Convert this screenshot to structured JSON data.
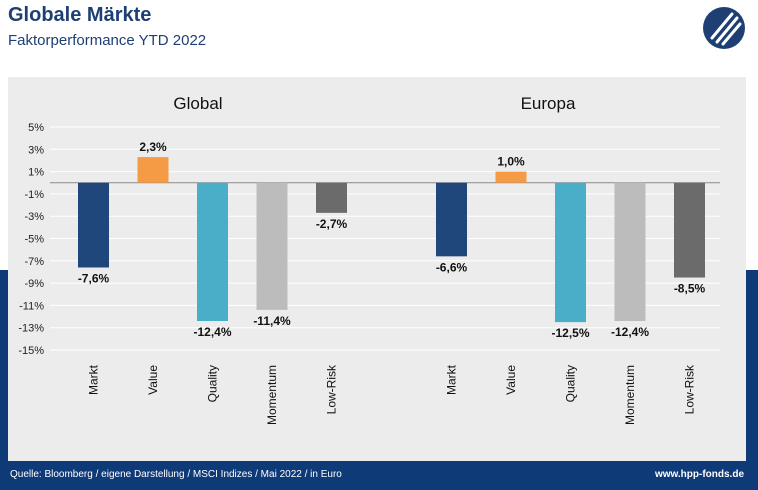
{
  "header": {
    "title": "Globale Märkte",
    "subtitle": "Faktorperformance YTD 2022"
  },
  "footer": {
    "source": "Quelle: Bloomberg / eigene Darstellung / MSCI Indizes / Mai 2022 / in Euro",
    "url": "www.hpp-fonds.de"
  },
  "colors": {
    "Markt": "#1f477c",
    "Value": "#f59a45",
    "Quality": "#4aaec8",
    "Momentum": "#bcbcbc",
    "Low-Risk": "#6b6b6b",
    "brand": "#1e3f74"
  },
  "chart_data": [
    {
      "type": "bar",
      "title": "Global",
      "categories": [
        "Markt",
        "Value",
        "Quality",
        "Momentum",
        "Low-Risk"
      ],
      "values": [
        -7.6,
        2.3,
        -12.4,
        -11.4,
        -2.7
      ],
      "labels": [
        "-7,6%",
        "2,3%",
        "-12,4%",
        "-11,4%",
        "-2,7%"
      ],
      "ylim": [
        -15,
        5
      ],
      "yticks": [
        5,
        3,
        1,
        -1,
        -3,
        -5,
        -7,
        -9,
        -11,
        -13,
        -15
      ],
      "ytick_labels": [
        "5%",
        "3%",
        "1%",
        "-1%",
        "-3%",
        "-5%",
        "-7%",
        "-9%",
        "-11%",
        "-13%",
        "-15%"
      ],
      "grid": true
    },
    {
      "type": "bar",
      "title": "Europa",
      "categories": [
        "Markt",
        "Value",
        "Quality",
        "Momentum",
        "Low-Risk"
      ],
      "values": [
        -6.6,
        1.0,
        -12.5,
        -12.4,
        -8.5
      ],
      "labels": [
        "-6,6%",
        "1,0%",
        "-12,5%",
        "-12,4%",
        "-8,5%"
      ],
      "ylim": [
        -15,
        5
      ],
      "grid": true
    }
  ]
}
